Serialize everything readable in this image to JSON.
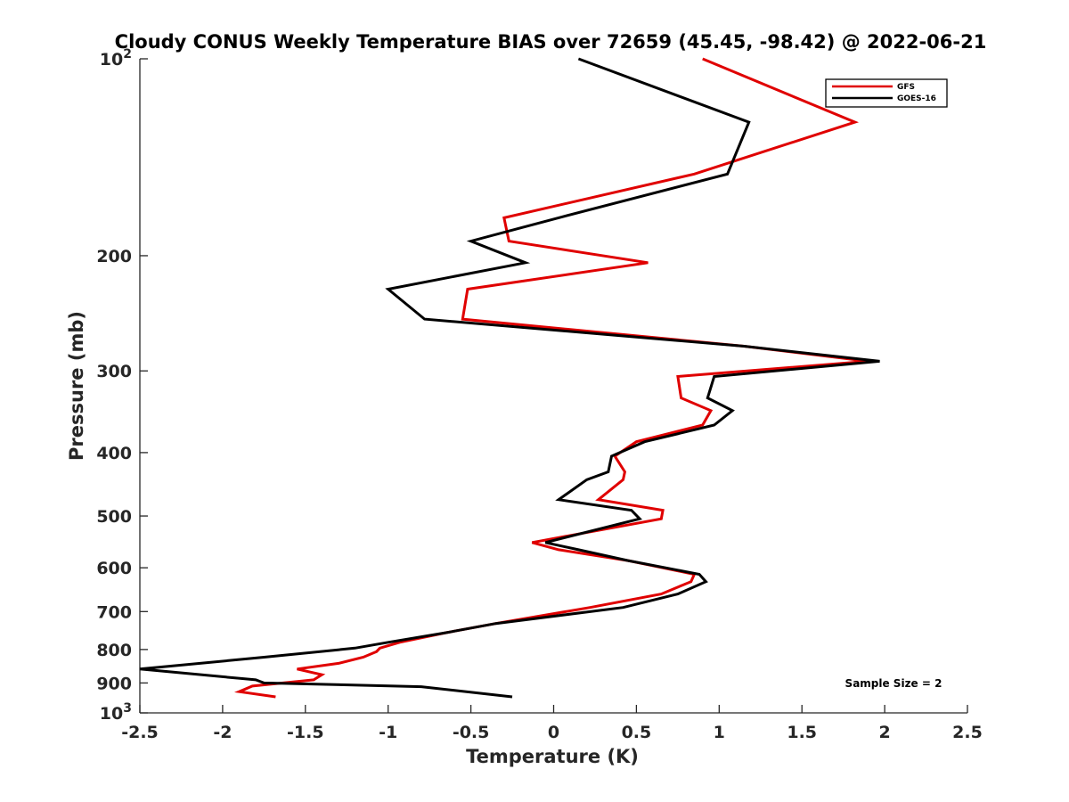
{
  "chart_data": {
    "type": "line",
    "title": "Cloudy CONUS Weekly Temperature BIAS over 72659 (45.45, -98.42) @ 2022-06-21",
    "xlabel": "Temperature (K)",
    "ylabel": "Pressure (mb)",
    "xlim": [
      -2.5,
      2.5
    ],
    "ylim": [
      100,
      1000
    ],
    "y_scale": "log",
    "y_reversed": true,
    "x_ticks": [
      {
        "value": -2.5,
        "label": "-2.5"
      },
      {
        "value": -2,
        "label": "-2"
      },
      {
        "value": -1.5,
        "label": "-1.5"
      },
      {
        "value": -1,
        "label": "-1"
      },
      {
        "value": -0.5,
        "label": "-0.5"
      },
      {
        "value": 0,
        "label": "0"
      },
      {
        "value": 0.5,
        "label": "0.5"
      },
      {
        "value": 1,
        "label": "1"
      },
      {
        "value": 1.5,
        "label": "1.5"
      },
      {
        "value": 2,
        "label": "2"
      },
      {
        "value": 2.5,
        "label": "2.5"
      }
    ],
    "y_ticks": [
      {
        "value": 100,
        "base": "10",
        "exp": "2"
      },
      {
        "value": 200,
        "base": "200",
        "exp": ""
      },
      {
        "value": 300,
        "base": "300",
        "exp": ""
      },
      {
        "value": 400,
        "base": "400",
        "exp": ""
      },
      {
        "value": 500,
        "base": "500",
        "exp": ""
      },
      {
        "value": 600,
        "base": "600",
        "exp": ""
      },
      {
        "value": 700,
        "base": "700",
        "exp": ""
      },
      {
        "value": 800,
        "base": "800",
        "exp": ""
      },
      {
        "value": 900,
        "base": "900",
        "exp": ""
      },
      {
        "value": 1000,
        "base": "10",
        "exp": "3"
      }
    ],
    "grid": false,
    "legend_position": "top-right",
    "series": [
      {
        "name": "GFS",
        "color": "#e00000",
        "points": [
          [
            0.9,
            100
          ],
          [
            1.82,
            125
          ],
          [
            0.85,
            150
          ],
          [
            -0.3,
            175
          ],
          [
            -0.27,
            190
          ],
          [
            0.57,
            205
          ],
          [
            -0.52,
            225
          ],
          [
            -0.55,
            250
          ],
          [
            1.15,
            275
          ],
          [
            1.9,
            290
          ],
          [
            0.75,
            306
          ],
          [
            0.77,
            330
          ],
          [
            0.95,
            345
          ],
          [
            0.9,
            363
          ],
          [
            0.5,
            385
          ],
          [
            0.37,
            405
          ],
          [
            0.43,
            428
          ],
          [
            0.42,
            440
          ],
          [
            0.27,
            472
          ],
          [
            0.66,
            490
          ],
          [
            0.65,
            505
          ],
          [
            -0.13,
            549
          ],
          [
            0.03,
            563
          ],
          [
            0.45,
            585
          ],
          [
            0.85,
            614
          ],
          [
            0.83,
            630
          ],
          [
            0.65,
            658
          ],
          [
            0.22,
            690
          ],
          [
            -0.35,
            730
          ],
          [
            -0.65,
            754
          ],
          [
            -0.93,
            780
          ],
          [
            -1.05,
            796
          ],
          [
            -1.07,
            806
          ],
          [
            -1.15,
            822
          ],
          [
            -1.3,
            840
          ],
          [
            -1.55,
            857
          ],
          [
            -1.4,
            874
          ],
          [
            -1.45,
            890
          ],
          [
            -1.82,
            910
          ],
          [
            -1.9,
            928
          ],
          [
            -1.68,
            945
          ]
        ]
      },
      {
        "name": "GOES-16",
        "color": "#000000",
        "points": [
          [
            0.15,
            100
          ],
          [
            1.18,
            125
          ],
          [
            1.05,
            150
          ],
          [
            0.03,
            175
          ],
          [
            -0.5,
            190
          ],
          [
            -0.17,
            205
          ],
          [
            -1.0,
            225
          ],
          [
            -0.78,
            250
          ],
          [
            1.15,
            275
          ],
          [
            1.97,
            290
          ],
          [
            0.97,
            306
          ],
          [
            0.93,
            330
          ],
          [
            1.08,
            345
          ],
          [
            0.97,
            363
          ],
          [
            0.55,
            385
          ],
          [
            0.35,
            405
          ],
          [
            0.33,
            428
          ],
          [
            0.2,
            440
          ],
          [
            0.03,
            472
          ],
          [
            0.47,
            490
          ],
          [
            0.52,
            505
          ],
          [
            -0.05,
            549
          ],
          [
            0.15,
            563
          ],
          [
            0.45,
            585
          ],
          [
            0.88,
            614
          ],
          [
            0.92,
            630
          ],
          [
            0.75,
            658
          ],
          [
            0.42,
            690
          ],
          [
            -0.35,
            730
          ],
          [
            -0.65,
            754
          ],
          [
            -1.0,
            780
          ],
          [
            -1.2,
            796
          ],
          [
            -1.75,
            822
          ],
          [
            -2.5,
            857
          ],
          [
            -1.8,
            890
          ],
          [
            -1.75,
            900
          ],
          [
            -0.8,
            912
          ],
          [
            -0.25,
            945
          ]
        ]
      }
    ],
    "annotations": [
      {
        "text": "Sample Size = 2",
        "position": "bottom-right"
      }
    ]
  }
}
